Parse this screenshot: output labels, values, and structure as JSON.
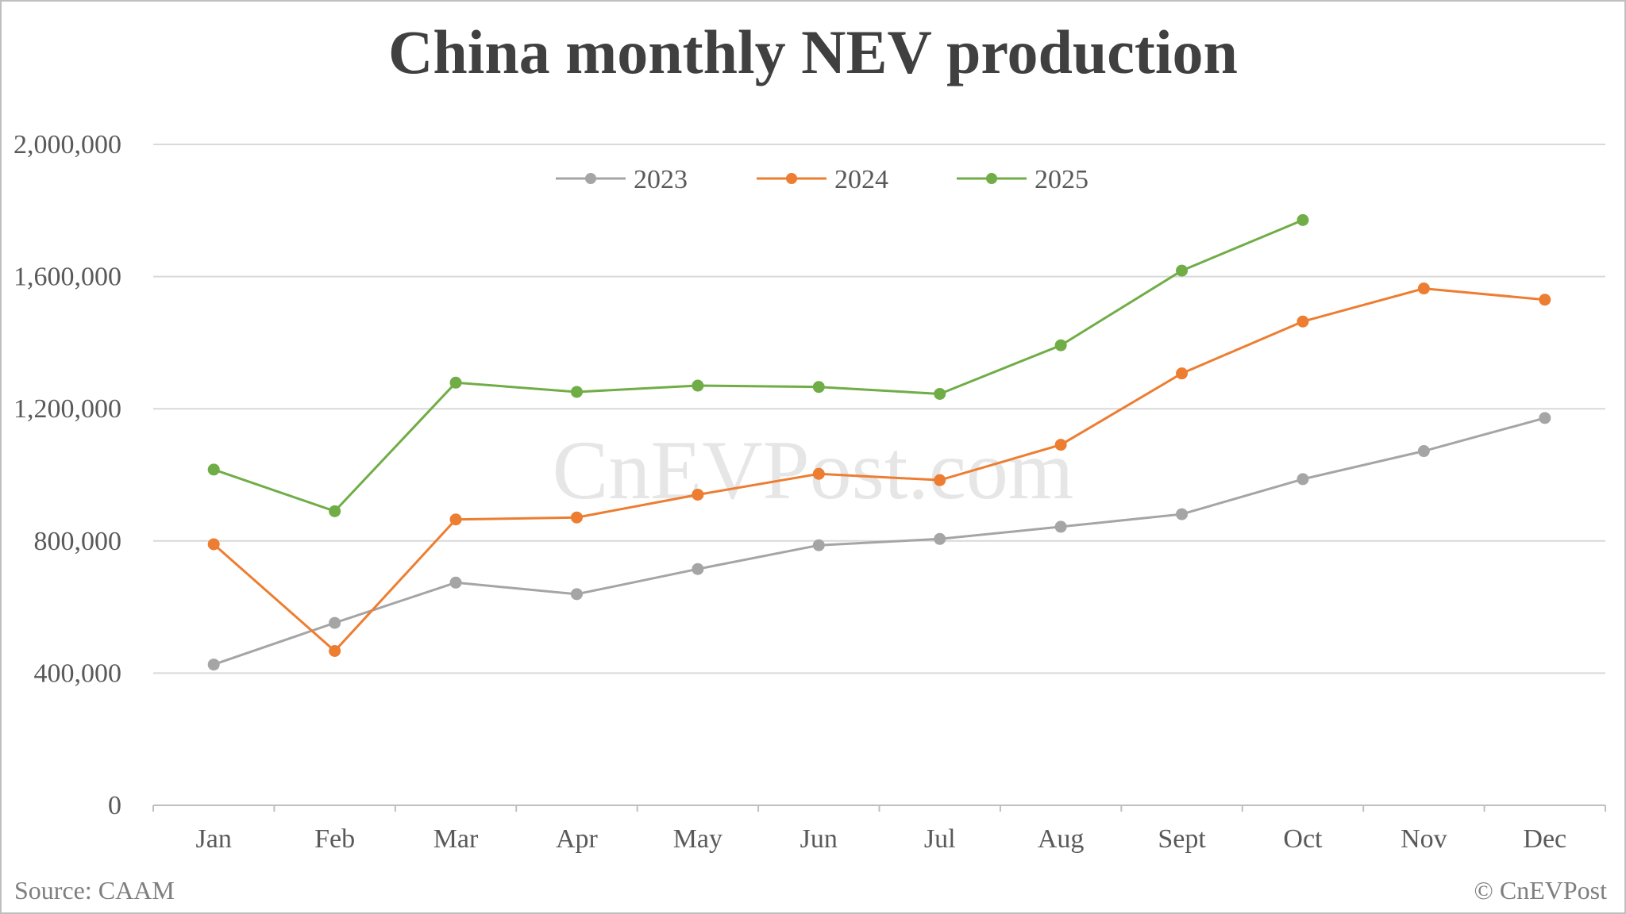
{
  "chart_data": {
    "type": "line",
    "title": "China monthly NEV production",
    "xlabel": "",
    "ylabel": "",
    "categories": [
      "Jan",
      "Feb",
      "Mar",
      "Apr",
      "May",
      "Jun",
      "Jul",
      "Aug",
      "Sept",
      "Oct",
      "Nov",
      "Dec"
    ],
    "ylim": [
      0,
      2000000
    ],
    "yticks": [
      0,
      400000,
      800000,
      1200000,
      1600000,
      2000000
    ],
    "ytick_labels": [
      "0",
      "400,000",
      "800,000",
      "1,200,000",
      "1,600,000",
      "2,000,000"
    ],
    "grid": true,
    "legend_position": "top-center",
    "series": [
      {
        "name": "2023",
        "color": "#a5a5a5",
        "values": [
          426000,
          552000,
          674000,
          639000,
          715000,
          787000,
          806000,
          843000,
          881000,
          987000,
          1072000,
          1172000
        ]
      },
      {
        "name": "2024",
        "color": "#ed7d31",
        "values": [
          790000,
          467000,
          865000,
          871000,
          940000,
          1003000,
          984000,
          1091000,
          1307000,
          1464000,
          1564000,
          1530000
        ]
      },
      {
        "name": "2025",
        "color": "#70ad47",
        "values": [
          1016000,
          890000,
          1279000,
          1251000,
          1270000,
          1266000,
          1245000,
          1392000,
          1618000,
          1771000,
          null,
          null
        ]
      }
    ],
    "watermark": "CnEVPost.com",
    "source": "Source: CAAM",
    "copyright": "© CnEVPost"
  }
}
